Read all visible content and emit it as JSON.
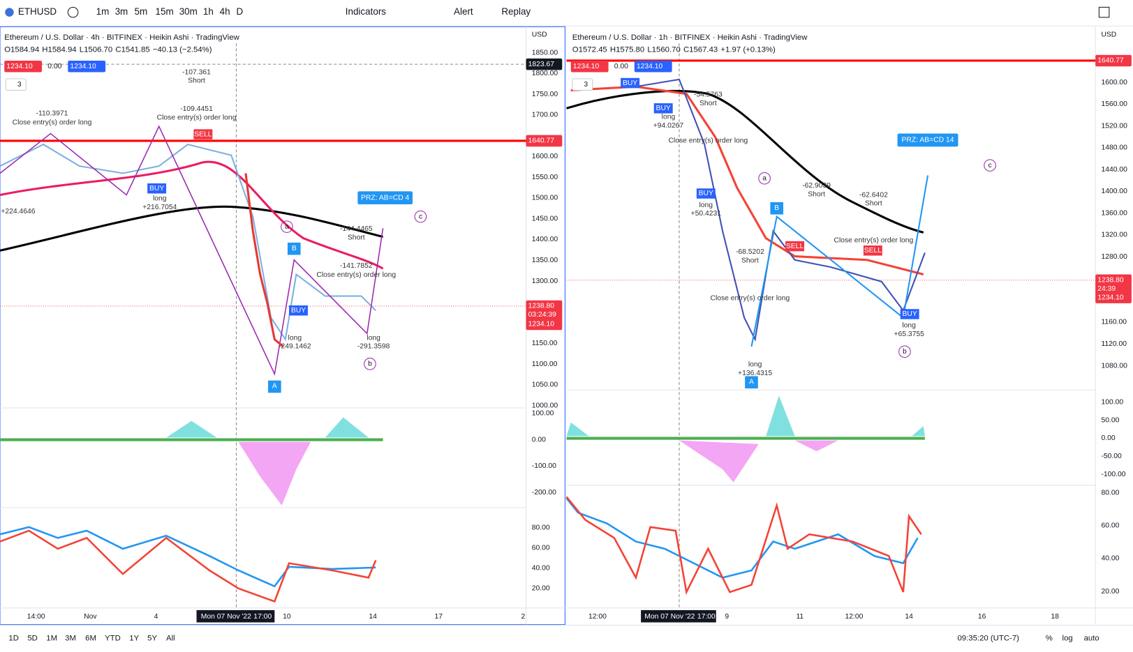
{
  "toolbar": {
    "symbol": "ETHUSD",
    "intervals": [
      "1m",
      "3m",
      "5m",
      "15m",
      "30m",
      "1h",
      "4h",
      "D"
    ],
    "indicators": "Indicators",
    "alert": "Alert",
    "replay": "Replay"
  },
  "left_pane": {
    "title": "Ethereum / U.S. Dollar · 4h · BITFINEX · Heikin Ashi · TradingView",
    "ohlc": {
      "o": "O1584.94",
      "h": "H1584.94",
      "l": "L1506.70",
      "c": "C1541.85",
      "change": "−40.13 (−2.54%)"
    },
    "sell_price": "1234.10",
    "spread": "0.00",
    "buy_price": "1234.10",
    "lot": "3",
    "currency": "USD",
    "price_ticks": [
      "1850.00",
      "1800.00",
      "1750.00",
      "1700.00",
      "1600.00",
      "1550.00",
      "1500.00",
      "1450.00",
      "1400.00",
      "1350.00",
      "1300.00",
      "1150.00",
      "1100.00",
      "1050.00",
      "1000.00"
    ],
    "osc_ticks": [
      "100.00",
      "0.00",
      "-100.00",
      "-200.00"
    ],
    "rsi_ticks": [
      "80.00",
      "60.00",
      "40.00",
      "20.00"
    ],
    "time_labels": [
      "14:00",
      "Nov",
      "4",
      "10",
      "14",
      "17",
      "2"
    ],
    "cursor_time": "Mon 07 Nov '22",
    "cursor_hour": "17:00",
    "badges": {
      "crosshair": "1823.67",
      "level": "1640.77",
      "last": "1238.80",
      "countdown": "03:24:39",
      "bid": "1234.10"
    },
    "prz": "PRZ: AB=CD 4",
    "points": [
      "A",
      "B",
      "a",
      "b",
      "c"
    ],
    "signals": [
      "SELL",
      "BUY",
      "BUY"
    ],
    "notes": [
      "-107.361",
      "Short",
      "-109.4451",
      "Close entry(s) order long",
      "long",
      "+216.7054",
      "-110.3971",
      "Close entry(s) order long",
      "-144.4465",
      "Short",
      "-141.7852",
      "Close entry(s) order long",
      "long",
      "-249.1462",
      "long",
      "-291.3598",
      "+224.4646"
    ]
  },
  "right_pane": {
    "title": "Ethereum / U.S. Dollar · 1h · BITFINEX · Heikin Ashi · TradingView",
    "ohlc": {
      "o": "O1572.45",
      "h": "H1575.80",
      "l": "L1560.70",
      "c": "C1567.43",
      "change": "+1.97 (+0.13%)"
    },
    "sell_price": "1234.10",
    "spread": "0.00",
    "buy_price": "1234.10",
    "lot": "3",
    "currency": "USD",
    "price_ticks": [
      "1600.00",
      "1560.00",
      "1520.00",
      "1480.00",
      "1440.00",
      "1400.00",
      "1360.00",
      "1320.00",
      "1280.00",
      "1160.00",
      "1120.00",
      "1080.00"
    ],
    "osc_ticks": [
      "100.00",
      "50.00",
      "0.00",
      "-50.00",
      "-100.00"
    ],
    "rsi_ticks": [
      "80.00",
      "60.00",
      "40.00",
      "20.00"
    ],
    "time_labels": [
      "12:00",
      "9",
      "11",
      "12:00",
      "14",
      "16",
      "18"
    ],
    "cursor_time": "Mon 07 Nov '22",
    "cursor_hour": "17:00",
    "badges": {
      "level": "1640.77",
      "last": "1238.80",
      "countdown": "24:39",
      "bid": "1234.10"
    },
    "prz": "PRZ: AB=CD 14",
    "points": [
      "A",
      "B",
      "a",
      "b",
      "c"
    ],
    "signals": [
      "BUY",
      "BUY",
      "BUY",
      "SELL",
      "SELL",
      "BUY"
    ],
    "notes": [
      "-54.5763",
      "Short",
      "long",
      "+94.0267",
      "Close entry(s) order long",
      "long",
      "+50.4231",
      "-62.6402",
      "Short",
      "Close entry(s) order long",
      "-68.5202",
      "Short",
      "Close entry(s) order long",
      "long",
      "+136.4315",
      "long",
      "+65.3755",
      "-62.9039",
      "Short"
    ]
  },
  "bottom_bar": {
    "ranges": [
      "1D",
      "5D",
      "1M",
      "3M",
      "6M",
      "YTD",
      "1Y",
      "5Y",
      "All"
    ],
    "clock": "09:35:20 (UTC-7)",
    "percent": "%",
    "log": "log",
    "auto": "auto"
  }
}
